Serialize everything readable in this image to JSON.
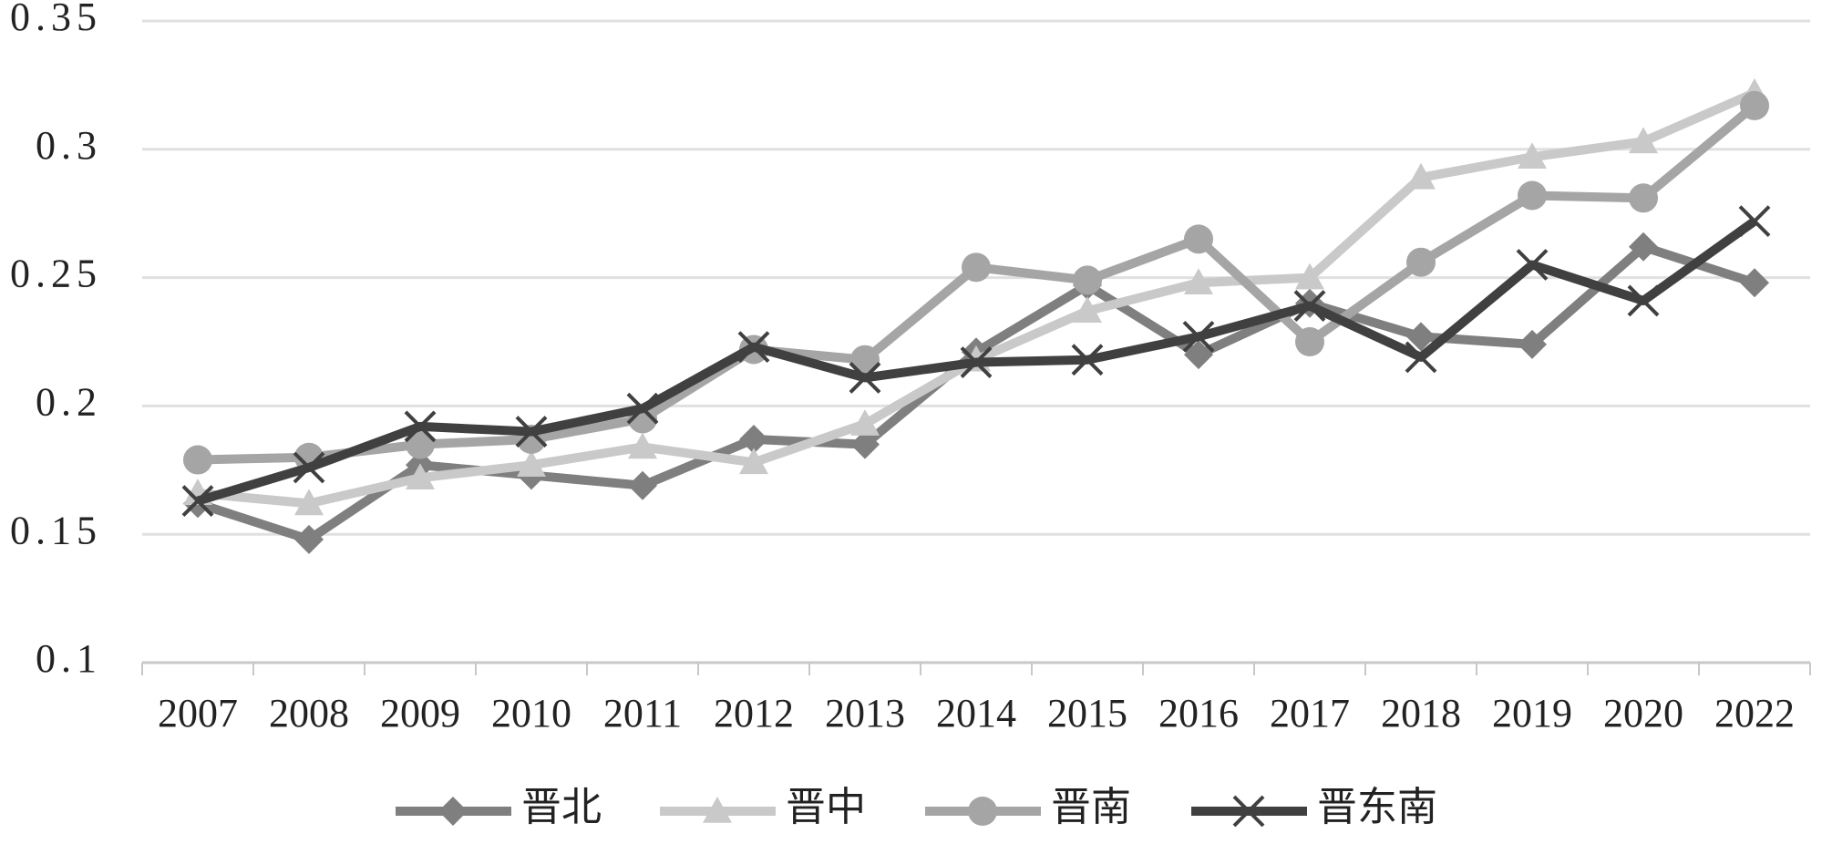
{
  "chart_data": {
    "type": "line",
    "categories": [
      "2007",
      "2008",
      "2009",
      "2010",
      "2011",
      "2012",
      "2013",
      "2014",
      "2015",
      "2016",
      "2017",
      "2018",
      "2019",
      "2020",
      "2022"
    ],
    "series": [
      {
        "name": "晋北",
        "color": "#7f7f7f",
        "marker": "diamond",
        "values": [
          0.162,
          0.148,
          0.177,
          0.173,
          0.169,
          0.187,
          0.185,
          0.221,
          0.247,
          0.22,
          0.24,
          0.227,
          0.224,
          0.262,
          0.248
        ]
      },
      {
        "name": "晋中",
        "color": "#c9c9c9",
        "marker": "triangle",
        "values": [
          0.166,
          0.162,
          0.172,
          0.177,
          0.184,
          0.178,
          0.193,
          0.218,
          0.237,
          0.248,
          0.25,
          0.289,
          0.297,
          0.303,
          0.322
        ]
      },
      {
        "name": "晋南",
        "color": "#a5a5a5",
        "marker": "circle",
        "values": [
          0.179,
          0.18,
          0.185,
          0.187,
          0.195,
          0.222,
          0.218,
          0.254,
          0.249,
          0.265,
          0.225,
          0.256,
          0.282,
          0.281,
          0.317
        ]
      },
      {
        "name": "晋东南",
        "color": "#404040",
        "marker": "x",
        "values": [
          0.163,
          0.176,
          0.192,
          0.19,
          0.199,
          0.223,
          0.211,
          0.217,
          0.218,
          0.227,
          0.239,
          0.219,
          0.255,
          0.241,
          0.272
        ]
      }
    ],
    "ylim": [
      0.1,
      0.35
    ],
    "yticks": [
      0.1,
      0.15,
      0.2,
      0.25,
      0.3,
      0.35
    ],
    "grid": true,
    "legend": "bottom"
  }
}
